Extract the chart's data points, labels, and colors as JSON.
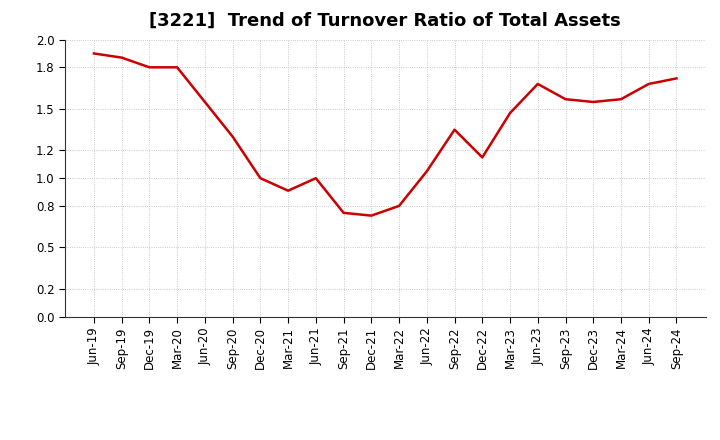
{
  "title": "[3221]  Trend of Turnover Ratio of Total Assets",
  "x_labels": [
    "Jun-19",
    "Sep-19",
    "Dec-19",
    "Mar-20",
    "Jun-20",
    "Sep-20",
    "Dec-20",
    "Mar-21",
    "Jun-21",
    "Sep-21",
    "Dec-21",
    "Mar-22",
    "Jun-22",
    "Sep-22",
    "Dec-22",
    "Mar-23",
    "Jun-23",
    "Sep-23",
    "Dec-23",
    "Mar-24",
    "Jun-24",
    "Sep-24"
  ],
  "y_values": [
    1.9,
    1.87,
    1.8,
    1.8,
    1.55,
    1.3,
    1.0,
    0.91,
    1.0,
    0.75,
    0.73,
    0.8,
    1.05,
    1.35,
    1.15,
    1.47,
    1.68,
    1.57,
    1.55,
    1.57,
    1.68,
    1.72
  ],
  "line_color": "#cc0000",
  "line_width": 1.8,
  "ylim": [
    0.0,
    2.0
  ],
  "yticks": [
    0.0,
    0.2,
    0.5,
    0.8,
    1.0,
    1.2,
    1.5,
    1.8,
    2.0
  ],
  "grid_color": "#bbbbbb",
  "background_color": "#ffffff",
  "title_fontsize": 13,
  "tick_fontsize": 8.5
}
